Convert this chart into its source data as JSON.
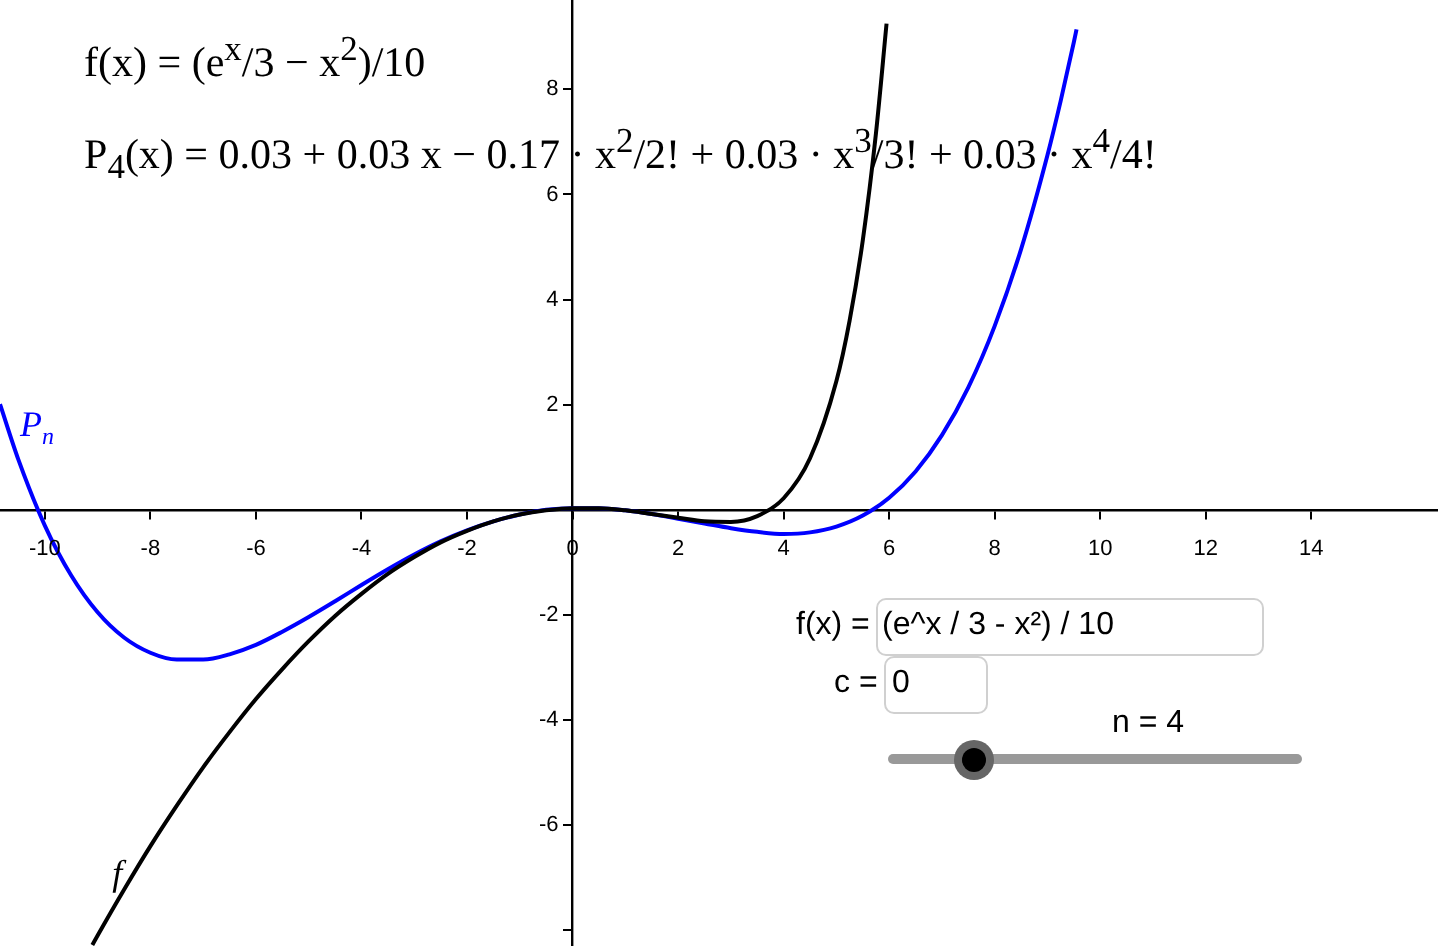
{
  "chart_data": {
    "type": "line",
    "xlim": [
      -10.85,
      16.4
    ],
    "ylim": [
      -8.3,
      9.7
    ],
    "xticks": [
      -10,
      -8,
      -6,
      -4,
      -2,
      0,
      2,
      4,
      6,
      8,
      10,
      12,
      14
    ],
    "yticks": [
      {
        "value": -8,
        "label": null
      },
      -6,
      -4,
      -2,
      2,
      4,
      6,
      8
    ],
    "grid": false,
    "legend": false,
    "marker": "none",
    "line_style": "solid",
    "series": [
      {
        "name": "f",
        "color": "#000000",
        "x": [
          -9.1,
          -9,
          -8.5,
          -8,
          -7.5,
          -7,
          -6.5,
          -6,
          -5.5,
          -5,
          -4.5,
          -4,
          -3.5,
          -3,
          -2.5,
          -2,
          -1.5,
          -1,
          -0.5,
          0,
          0.5,
          1,
          1.5,
          2,
          2.5,
          3,
          3.5,
          4,
          4.5,
          5,
          5.25,
          5.5,
          5.75,
          5.95
        ],
        "values": [
          -8.28,
          -8.1,
          -7.23,
          -6.4,
          -5.63,
          -4.9,
          -4.23,
          -3.6,
          -3.03,
          -2.5,
          -2.02,
          -1.6,
          -1.22,
          -0.9,
          -0.62,
          -0.4,
          -0.22,
          -0.09,
          -0.01,
          0.03,
          0.03,
          -0.01,
          -0.08,
          -0.15,
          -0.22,
          -0.23,
          -0.12,
          0.22,
          0.98,
          2.45,
          3.6,
          5.13,
          7.17,
          9.25
        ]
      },
      {
        "name": "P$_{n}$",
        "color": "#0000ff",
        "x": [
          -10.85,
          -10.5,
          -10,
          -9.5,
          -9,
          -8.5,
          -8,
          -7.5,
          -7,
          -6.5,
          -6,
          -5.5,
          -5,
          -4.5,
          -4,
          -3.5,
          -3,
          -2.5,
          -2,
          -1.5,
          -1,
          -0.5,
          0,
          0.5,
          1,
          1.5,
          2,
          2.5,
          3,
          3.5,
          4,
          4.5,
          5,
          5.5,
          6,
          6.5,
          7,
          7.5,
          8,
          8.5,
          9,
          9.25,
          9.5,
          9.55
        ],
        "values": [
          2.01,
          0.95,
          -0.3,
          -1.25,
          -1.95,
          -2.43,
          -2.72,
          -2.85,
          -2.85,
          -2.75,
          -2.57,
          -2.32,
          -2.04,
          -1.74,
          -1.43,
          -1.13,
          -0.85,
          -0.6,
          -0.39,
          -0.22,
          -0.09,
          0,
          0.03,
          0.03,
          -0.01,
          -0.08,
          -0.17,
          -0.26,
          -0.35,
          -0.42,
          -0.46,
          -0.43,
          -0.32,
          -0.11,
          0.23,
          0.73,
          1.42,
          2.33,
          3.5,
          4.96,
          6.75,
          7.78,
          8.9,
          9.14
        ]
      }
    ],
    "annotations": [
      "f(x) = (e$^{x}$/3 − x$^{2}$)/10",
      "P$_{4}$(x) = 0.03 + 0.03 x − 0.17 · x$^{2}$/2! + 0.03 · x$^{3}$/3! + 0.03 · x$^{4}$/4!",
      "f(x) =",
      "(e^x / 3 - x²) / 10",
      "c =",
      "0",
      "n = 4"
    ]
  }
}
